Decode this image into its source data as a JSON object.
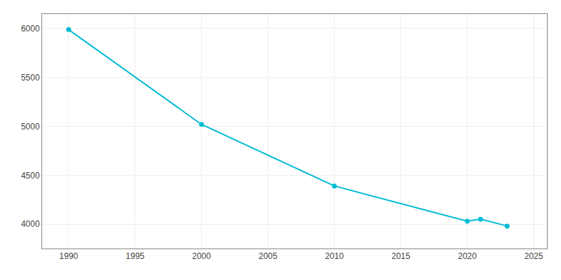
{
  "chart_data": {
    "type": "line",
    "x": [
      1990,
      2000,
      2010,
      2020,
      2021,
      2023
    ],
    "values": [
      5990,
      5020,
      4390,
      4030,
      4050,
      3980
    ],
    "color": "#00bcd4",
    "marker": "circle",
    "xlim": [
      1988,
      2026
    ],
    "ylim": [
      3750,
      6150
    ],
    "xticks": [
      1990,
      1995,
      2000,
      2005,
      2010,
      2015,
      2020,
      2025
    ],
    "yticks": [
      4000,
      4500,
      5000,
      5500,
      6000
    ],
    "grid": true
  }
}
